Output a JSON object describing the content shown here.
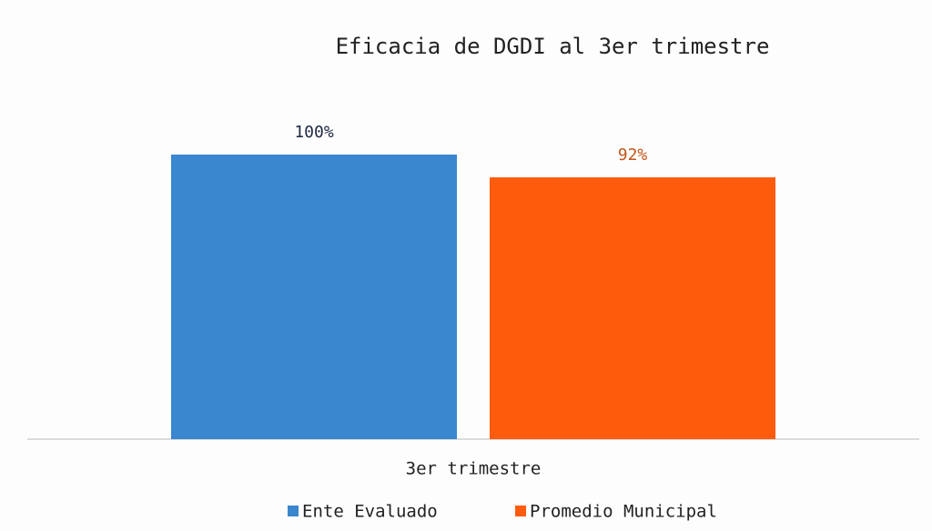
{
  "chart_data": {
    "type": "bar",
    "title": "Eficacia de DGDI al 3er trimestre",
    "categories": [
      "3er trimestre"
    ],
    "series": [
      {
        "name": "Ente Evaluado",
        "color": "#3a86cf",
        "label_color": "#1f2a44",
        "values": [
          100
        ],
        "value_labels": [
          "100%"
        ]
      },
      {
        "name": "Promedio Municipal",
        "color": "#ff5b0c",
        "label_color": "#c5561a",
        "values": [
          92
        ],
        "value_labels": [
          "92%"
        ]
      }
    ],
    "legend": "bottom"
  }
}
